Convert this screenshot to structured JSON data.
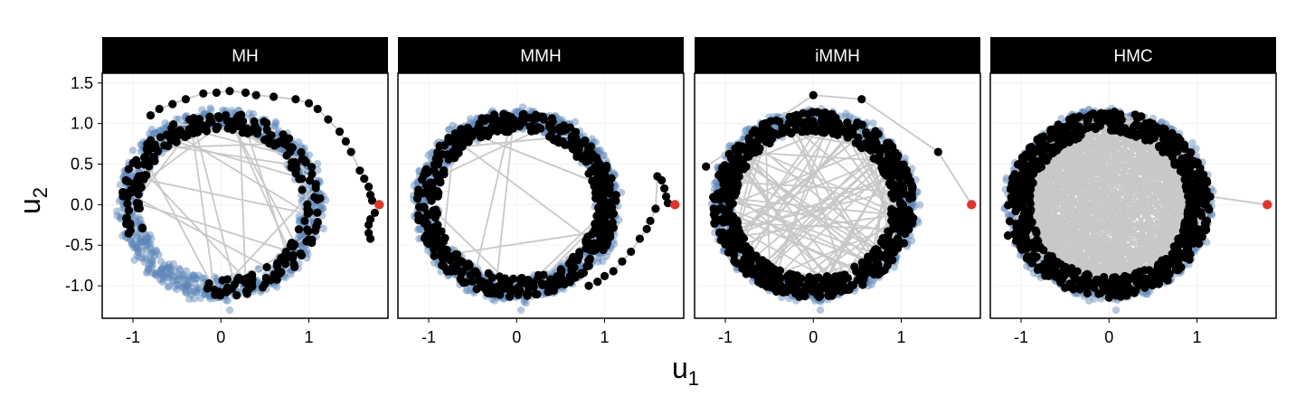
{
  "figure": {
    "xlabel": "u",
    "xlabel_sub": "1",
    "ylabel": "u",
    "ylabel_sub": "2"
  },
  "colors": {
    "target_samples": "#5b86b8",
    "chain_points": "#000000",
    "chain_path": "#c8c8c8",
    "start_point": "#e0352b",
    "strip_background": "#000000",
    "strip_text": "#ffffff"
  },
  "chart_data": [
    {
      "type": "scatter",
      "title": "MH",
      "xlim": [
        -1.35,
        1.9
      ],
      "ylim": [
        -1.4,
        1.62
      ],
      "x_ticks": [
        -1,
        0,
        1
      ],
      "x_tick_labels": [
        "-1",
        "0",
        "1"
      ],
      "y_ticks": [
        -1.0,
        -0.5,
        0.0,
        0.5,
        1.0,
        1.5
      ],
      "y_tick_labels": [
        "-1.0",
        "-0.5",
        "0.0",
        "0.5",
        "1.0",
        "1.5"
      ],
      "target_ring": {
        "radius": 1.05,
        "width": 0.17,
        "outlier": [
          0.1,
          -1.3
        ]
      },
      "start_point": [
        1.8,
        0.0
      ],
      "transient_path": [
        [
          1.8,
          0.0
        ],
        [
          1.72,
          0.05
        ],
        [
          1.7,
          0.12
        ],
        [
          1.68,
          0.22
        ],
        [
          1.63,
          0.32
        ],
        [
          1.58,
          0.42
        ],
        [
          1.48,
          0.65
        ],
        [
          1.42,
          0.78
        ],
        [
          1.35,
          0.9
        ],
        [
          1.22,
          1.05
        ],
        [
          1.1,
          1.18
        ],
        [
          1.0,
          1.25
        ],
        [
          0.85,
          1.3
        ],
        [
          0.6,
          1.33
        ],
        [
          0.4,
          1.35
        ],
        [
          0.28,
          1.38
        ],
        [
          0.1,
          1.4
        ],
        [
          -0.05,
          1.38
        ],
        [
          -0.2,
          1.37
        ],
        [
          -0.4,
          1.3
        ],
        [
          -0.55,
          1.24
        ],
        [
          -0.7,
          1.18
        ],
        [
          -0.8,
          1.1
        ]
      ],
      "extra_points": [
        [
          1.75,
          -0.1
        ],
        [
          1.7,
          -0.18
        ],
        [
          1.68,
          -0.25
        ],
        [
          1.68,
          -0.35
        ],
        [
          1.7,
          -0.42
        ]
      ],
      "chain_ring": {
        "arc_start_deg": -100,
        "arc_end_deg": 200,
        "radius": 1.03,
        "width": 0.22,
        "count": 260
      },
      "interior_jumps": 35
    },
    {
      "type": "scatter",
      "title": "MMH",
      "xlim": [
        -1.35,
        1.9
      ],
      "ylim": [
        -1.4,
        1.62
      ],
      "x_ticks": [
        -1,
        0,
        1
      ],
      "x_tick_labels": [
        "-1",
        "0",
        "1"
      ],
      "y_ticks": [
        -1.0,
        -0.5,
        0.0,
        0.5,
        1.0,
        1.5
      ],
      "y_tick_labels": [
        "-1.0",
        "-0.5",
        "0.0",
        "0.5",
        "1.0",
        "1.5"
      ],
      "target_ring": {
        "radius": 1.05,
        "width": 0.17,
        "outlier": [
          0.05,
          -1.3
        ]
      },
      "start_point": [
        1.8,
        0.0
      ],
      "transient_path": [
        [
          1.8,
          0.0
        ],
        [
          1.72,
          0.02
        ],
        [
          1.7,
          0.1
        ],
        [
          1.68,
          0.2
        ],
        [
          1.65,
          0.3
        ],
        [
          1.6,
          0.35
        ],
        [
          1.58,
          -0.05
        ],
        [
          1.52,
          -0.2
        ],
        [
          1.48,
          -0.3
        ],
        [
          1.4,
          -0.42
        ],
        [
          1.3,
          -0.58
        ],
        [
          1.2,
          -0.7
        ],
        [
          1.1,
          -0.82
        ],
        [
          1.0,
          -0.88
        ],
        [
          0.92,
          -0.95
        ],
        [
          0.82,
          -1.0
        ]
      ],
      "extra_points": [],
      "chain_ring": {
        "arc_start_deg": 0,
        "arc_end_deg": 360,
        "radius": 1.02,
        "width": 0.24,
        "count": 520
      },
      "interior_jumps": 14
    },
    {
      "type": "scatter",
      "title": "iMMH",
      "xlim": [
        -1.35,
        1.9
      ],
      "ylim": [
        -1.4,
        1.62
      ],
      "x_ticks": [
        -1,
        0,
        1
      ],
      "x_tick_labels": [
        "-1",
        "0",
        "1"
      ],
      "y_ticks": [
        -1.0,
        -0.5,
        0.0,
        0.5,
        1.0,
        1.5
      ],
      "y_tick_labels": [
        "-1.0",
        "-0.5",
        "0.0",
        "0.5",
        "1.0",
        "1.5"
      ],
      "target_ring": {
        "radius": 1.05,
        "width": 0.17,
        "outlier": [
          0.08,
          -1.3
        ]
      },
      "start_point": [
        1.8,
        0.0
      ],
      "transient_path": [
        [
          1.8,
          0.0
        ],
        [
          1.42,
          0.65
        ],
        [
          0.55,
          1.3
        ],
        [
          0.0,
          1.35
        ],
        [
          -0.55,
          0.95
        ],
        [
          -1.22,
          0.47
        ]
      ],
      "extra_points": [],
      "chain_ring": {
        "arc_start_deg": 0,
        "arc_end_deg": 360,
        "radius": 1.02,
        "width": 0.26,
        "count": 700
      },
      "interior_jumps": 110
    },
    {
      "type": "scatter",
      "title": "HMC",
      "xlim": [
        -1.35,
        1.9
      ],
      "ylim": [
        -1.4,
        1.62
      ],
      "x_ticks": [
        -1,
        0,
        1
      ],
      "x_tick_labels": [
        "-1",
        "0",
        "1"
      ],
      "y_ticks": [
        -1.0,
        -0.5,
        0.0,
        0.5,
        1.0,
        1.5
      ],
      "y_tick_labels": [
        "-1.0",
        "-0.5",
        "0.0",
        "0.5",
        "1.0",
        "1.5"
      ],
      "target_ring": {
        "radius": 1.05,
        "width": 0.17,
        "outlier": [
          0.08,
          -1.3
        ]
      },
      "start_point": [
        1.8,
        0.0
      ],
      "transient_path": [
        [
          1.8,
          0.0
        ],
        [
          1.15,
          0.1
        ]
      ],
      "extra_points": [
        [
          -1.15,
          -0.38
        ]
      ],
      "chain_ring": {
        "arc_start_deg": 0,
        "arc_end_deg": 360,
        "radius": 1.02,
        "width": 0.26,
        "count": 750
      },
      "interior_jumps": 600
    }
  ]
}
